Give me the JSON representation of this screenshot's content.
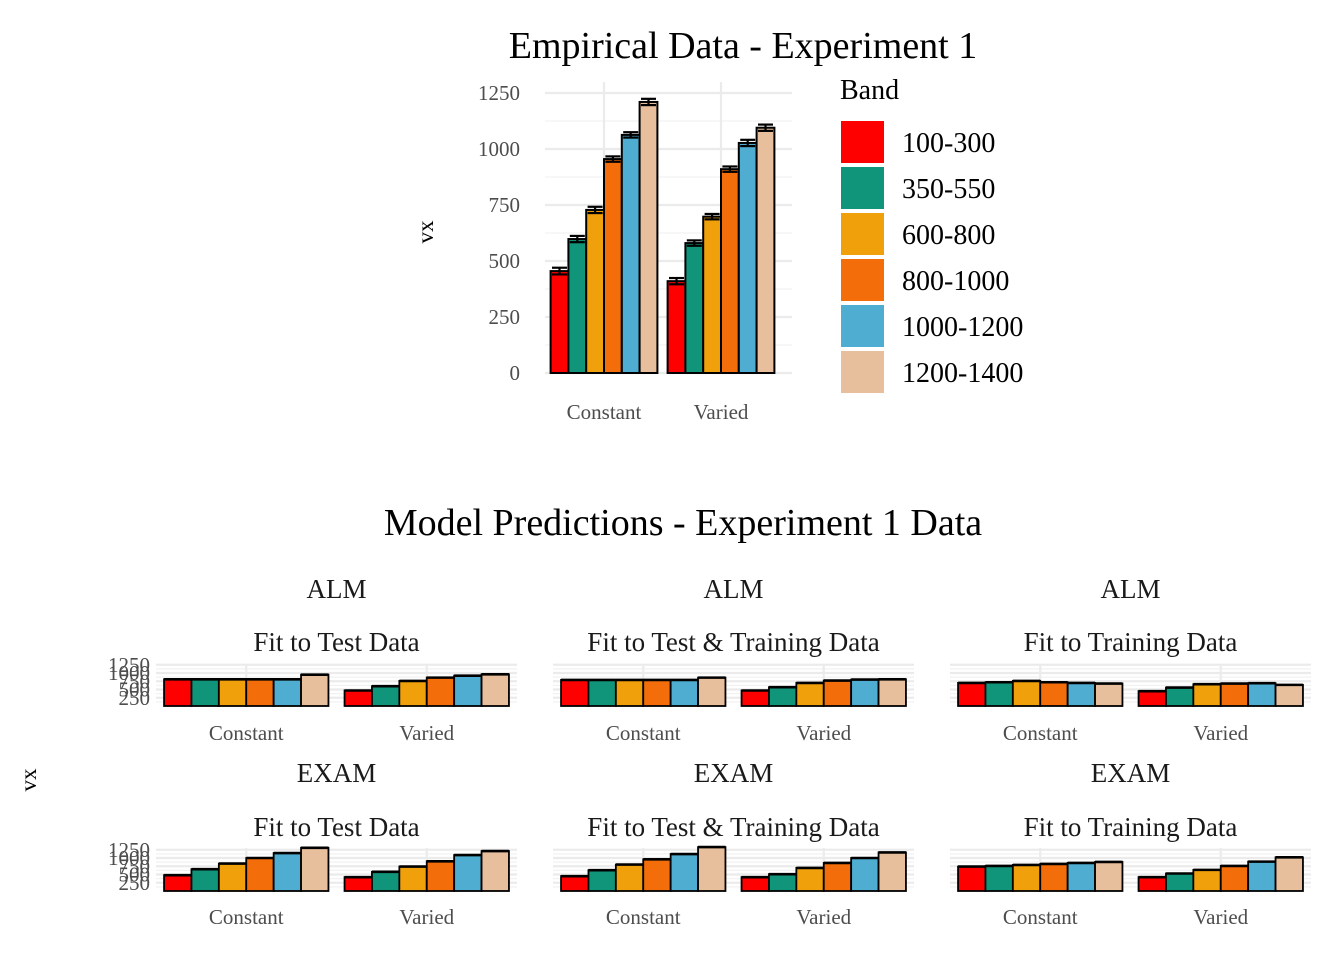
{
  "colors": {
    "100-300": "#ff0000",
    "350-550": "#10957a",
    "600-800": "#f0a00a",
    "800-1000": "#f36e0a",
    "1000-1200": "#4eadd0",
    "1200-1400": "#e8bf9d"
  },
  "chart_data": [
    {
      "id": "empirical",
      "type": "bar",
      "title": "Empirical Data - Experiment 1",
      "xlabel": "",
      "ylabel": "vx",
      "ylim": [
        0,
        1250
      ],
      "yticks": [
        0,
        250,
        500,
        750,
        1000,
        1250
      ],
      "categories": [
        "Constant",
        "Varied"
      ],
      "legend": {
        "title": "Band",
        "position": "right"
      },
      "series": [
        {
          "name": "100-300",
          "values": [
            455,
            410
          ],
          "err": [
            15,
            14
          ]
        },
        {
          "name": "350-550",
          "values": [
            598,
            580
          ],
          "err": [
            14,
            12
          ]
        },
        {
          "name": "600-800",
          "values": [
            728,
            698
          ],
          "err": [
            14,
            12
          ]
        },
        {
          "name": "800-1000",
          "values": [
            955,
            910
          ],
          "err": [
            12,
            12
          ]
        },
        {
          "name": "1000-1200",
          "values": [
            1063,
            1027
          ],
          "err": [
            12,
            14
          ]
        },
        {
          "name": "1200-1400",
          "values": [
            1210,
            1095
          ],
          "err": [
            14,
            14
          ]
        }
      ]
    },
    {
      "id": "model",
      "type": "bar",
      "title": "Model Predictions - Experiment 1 Data",
      "ylabel": "vx",
      "ylim": [
        0,
        1250
      ],
      "yticks": [
        250,
        500,
        750,
        1000,
        1250
      ],
      "categories": [
        "Constant",
        "Varied"
      ],
      "grid_on": true,
      "panels": [
        {
          "model": "ALM",
          "fit": "Fit to Test Data",
          "values": [
            [
              810,
              810,
              810,
              810,
              810,
              950
            ],
            [
              470,
              600,
              760,
              860,
              920,
              960
            ]
          ]
        },
        {
          "model": "ALM",
          "fit": "Fit to Test & Training Data",
          "values": [
            [
              790,
              790,
              790,
              790,
              790,
              860
            ],
            [
              470,
              570,
              700,
              770,
              800,
              810
            ]
          ]
        },
        {
          "model": "ALM",
          "fit": "Fit to Training Data",
          "values": [
            [
              700,
              720,
              760,
              720,
              700,
              680
            ],
            [
              450,
              560,
              660,
              680,
              690,
              640
            ]
          ]
        },
        {
          "model": "EXAM",
          "fit": "Fit to Test Data",
          "values": [
            [
              480,
              660,
              830,
              1000,
              1150,
              1310
            ],
            [
              420,
              580,
              740,
              900,
              1090,
              1210
            ]
          ]
        },
        {
          "model": "EXAM",
          "fit": "Fit to Test & Training Data",
          "values": [
            [
              450,
              630,
              800,
              960,
              1120,
              1330
            ],
            [
              420,
              510,
              700,
              850,
              1000,
              1170
            ]
          ]
        },
        {
          "model": "EXAM",
          "fit": "Fit to Training Data",
          "values": [
            [
              740,
              760,
              790,
              820,
              850,
              880
            ],
            [
              420,
              530,
              640,
              760,
              890,
              1020
            ]
          ]
        }
      ]
    }
  ]
}
